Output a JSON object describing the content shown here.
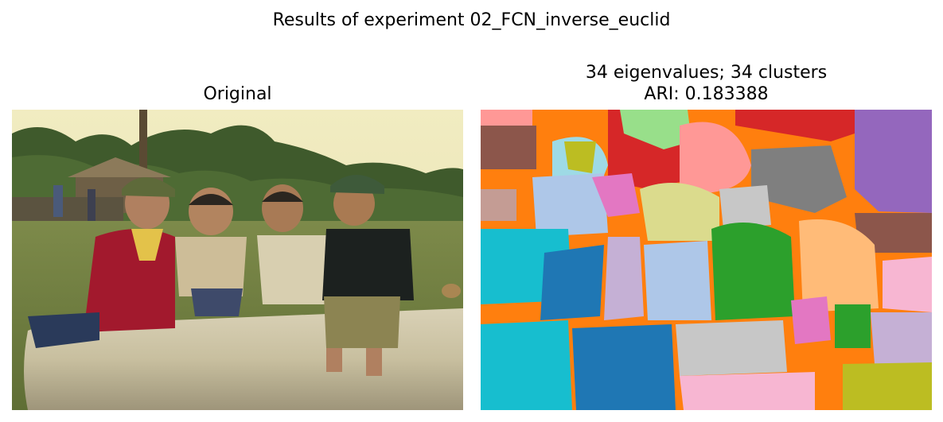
{
  "figure": {
    "suptitle": "Results of experiment 02_FCN_inverse_euclid"
  },
  "panels": [
    {
      "title_lines": [
        "Original"
      ],
      "content": "photograph"
    },
    {
      "title_lines": [
        "34 eigenvalues; 34 clusters",
        "ARI: 0.183388"
      ],
      "content": "segmentation map",
      "palette": [
        "#ff7f0e",
        "#1f77b4",
        "#2ca02c",
        "#d62728",
        "#9467bd",
        "#8c564b",
        "#e377c2",
        "#7f7f7f",
        "#bcbd22",
        "#17becf",
        "#aec7e8",
        "#ffbb78",
        "#98df8a",
        "#ff9896",
        "#c5b0d5",
        "#c49c94",
        "#f7b6d2",
        "#c7c7c7",
        "#dbdb8d",
        "#9edae5"
      ]
    }
  ]
}
